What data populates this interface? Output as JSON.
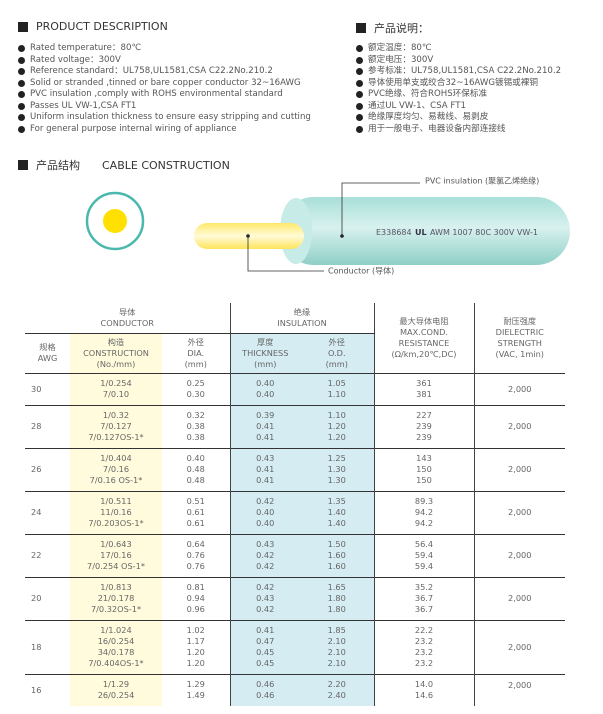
{
  "desc_en": {
    "title": "PRODUCT DESCRIPTION",
    "items": [
      "Rated temperature：80℃",
      "Rated voltage：300V",
      "Reference standard：UL758,UL1581,CSA C22.2No.210.2",
      "Solid or stranded ,tinned or bare copper conductor 32~16AWG",
      "PVC insulation ,comply with ROHS environmental standard",
      "Passes UL VW-1,CSA FT1",
      "Uniform insulation thickness to ensure easy stripping and cutting",
      "For general purpose internal wiring of appliance"
    ]
  },
  "desc_cn": {
    "title": "产品说明：",
    "items": [
      "额定温度：80℃",
      "额定电压：300V",
      "参考标准：UL758,UL1581,CSA C22.2No.210.2",
      "导体使用单支或绞合32~16AWG镀锡或裸铜",
      "PVC绝缘、符合ROHS环保标准",
      "通过UL VW-1、CSA FT1",
      "绝缘厚度均匀、易裁线、易剥皮",
      "用于一般电子、电器设备内部连接线"
    ]
  },
  "construction": {
    "title_cn": "产品结构",
    "title_en": "CABLE CONSTRUCTION",
    "insulation_label": "PVC insulation (聚氯乙烯绝缘)",
    "conductor_label": "Conductor (导体)",
    "print_left": "E338684",
    "print_ul": "UL",
    "print_right": "AWM 1007 80C 300V VW-1",
    "colors": {
      "insulation": "#9fd9d3",
      "conductor": "#ffe000",
      "ring": "#4bb8ad"
    }
  },
  "table": {
    "group_conductor": [
      "导体",
      "CONDUCTOR"
    ],
    "group_insulation": [
      "绝缘",
      "INSULATION"
    ],
    "headers": {
      "awg": [
        "规格",
        "AWG"
      ],
      "construction": [
        "构造",
        "CONSTRUCTION",
        "(No./mm)"
      ],
      "dia": [
        "外径",
        "DIA.",
        "(mm)"
      ],
      "thickness": [
        "厚度",
        "THICKNESS",
        "(mm)"
      ],
      "od": [
        "外径",
        "O.D.",
        "(mm)"
      ],
      "resistance": [
        "最大导体电阻",
        "MAX.COND.",
        "RESISTANCE",
        "(Ω/km,20℃,DC)"
      ],
      "dielectric": [
        "耐压强度",
        "DIELECTRIC",
        "STRENGTH",
        "(VAC, 1min)"
      ]
    },
    "rows": [
      {
        "awg": "30",
        "construction": [
          "1/0.254",
          "7/0.10"
        ],
        "dia": [
          "0.25",
          "0.30"
        ],
        "thickness": [
          "0.40",
          "0.40"
        ],
        "od": [
          "1.05",
          "1.10"
        ],
        "resistance": [
          "361",
          "381"
        ],
        "dielectric": "2,000"
      },
      {
        "awg": "28",
        "construction": [
          "1/0.32",
          "7/0.127",
          "7/0.127OS-1*"
        ],
        "dia": [
          "0.32",
          "0.38",
          "0.38"
        ],
        "thickness": [
          "0.39",
          "0.41",
          "0.41"
        ],
        "od": [
          "1.10",
          "1.20",
          "1.20"
        ],
        "resistance": [
          "227",
          "239",
          "239"
        ],
        "dielectric": "2,000"
      },
      {
        "awg": "26",
        "construction": [
          "1/0.404",
          "7/0.16",
          "7/0.16 OS-1*"
        ],
        "dia": [
          "0.40",
          "0.48",
          "0.48"
        ],
        "thickness": [
          "0.43",
          "0.41",
          "0.41"
        ],
        "od": [
          "1.25",
          "1.30",
          "1.30"
        ],
        "resistance": [
          "143",
          "150",
          "150"
        ],
        "dielectric": "2,000"
      },
      {
        "awg": "24",
        "construction": [
          "1/0.511",
          "11/0.16",
          "7/0.203OS-1*"
        ],
        "dia": [
          "0.51",
          "0.61",
          "0.61"
        ],
        "thickness": [
          "0.42",
          "0.40",
          "0.40"
        ],
        "od": [
          "1.35",
          "1.40",
          "1.40"
        ],
        "resistance": [
          "89.3",
          "94.2",
          "94.2"
        ],
        "dielectric": "2,000"
      },
      {
        "awg": "22",
        "construction": [
          "1/0.643",
          "17/0.16",
          "7/0.254 OS-1*"
        ],
        "dia": [
          "0.64",
          "0.76",
          "0.76"
        ],
        "thickness": [
          "0.43",
          "0.42",
          "0.42"
        ],
        "od": [
          "1.50",
          "1.60",
          "1.60"
        ],
        "resistance": [
          "56.4",
          "59.4",
          "59.4"
        ],
        "dielectric": "2,000"
      },
      {
        "awg": "20",
        "construction": [
          "1/0.813",
          "21/0.178",
          "7/0.32OS-1*"
        ],
        "dia": [
          "0.81",
          "0.94",
          "0.96"
        ],
        "thickness": [
          "0.42",
          "0.43",
          "0.42"
        ],
        "od": [
          "1.65",
          "1.80",
          "1.80"
        ],
        "resistance": [
          "35.2",
          "36.7",
          "36.7"
        ],
        "dielectric": "2,000"
      },
      {
        "awg": "18",
        "construction": [
          "1/1.024",
          "16/0.254",
          "34/0.178",
          "7/0.404OS-1*"
        ],
        "dia": [
          "1.02",
          "1.17",
          "1.20",
          "1.20"
        ],
        "thickness": [
          "0.41",
          "0.47",
          "0.45",
          "0.45"
        ],
        "od": [
          "1.85",
          "2.10",
          "2.10",
          "2.10"
        ],
        "resistance": [
          "22.2",
          "23.2",
          "23.2",
          "23.2"
        ],
        "dielectric": "2,000"
      },
      {
        "awg": "16",
        "construction": [
          "1/1.29",
          "26/0.254"
        ],
        "dia": [
          "1.29",
          "1.49"
        ],
        "thickness": [
          "0.46",
          "0.46"
        ],
        "od": [
          "2.20",
          "2.40"
        ],
        "resistance": [
          "14.0",
          "14.6"
        ],
        "dielectric": "2,000"
      }
    ]
  }
}
